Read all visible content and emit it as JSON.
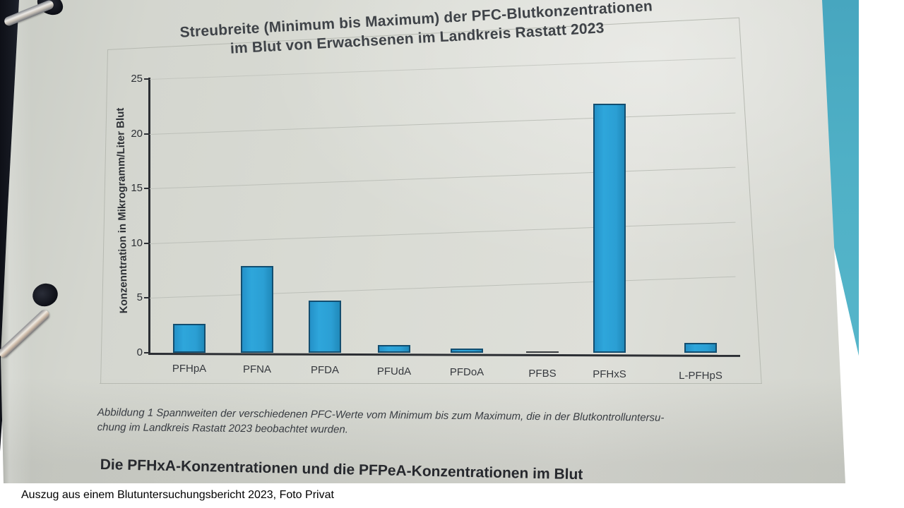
{
  "photo": {
    "title_line1": "Streubreite (Minimum bis Maximum) der PFC-Blutkonzentrationen",
    "title_line2": "im Blut von Erwachsenen im Landkreis Rastatt 2023",
    "caption_line1": "Abbildung 1 Spannweiten der verschiedenen PFC-Werte vom Minimum bis zum Maximum, die in der Blutkontrolluntersu-",
    "caption_line2": "chung im Landkreis Rastatt 2023 beobachtet wurden.",
    "heading_cutoff": "Die PFHxA-Konzentrationen und die PFPeA-Konzentrationen im Blut"
  },
  "footer": {
    "text": "Auszug aus einem Blutuntersuchungsbericht 2023, Foto Privat"
  },
  "chart_data": {
    "type": "bar",
    "title": "Streubreite (Minimum bis Maximum) der PFC-Blutkonzentrationen im Blut von Erwachsenen im Landkreis Rastatt 2023",
    "categories": [
      "PFHpA",
      "PFNA",
      "PFDA",
      "PFUdA",
      "PFDoA",
      "PFBS",
      "PFHxS",
      "L-PFHpS"
    ],
    "values": [
      2.6,
      7.7,
      4.6,
      0.7,
      0.35,
      0.1,
      20.5,
      0.8
    ],
    "xlabel": "",
    "ylabel": "Konzenntration in Mikrogramm/Liter Blut",
    "ylim": [
      0,
      25
    ],
    "yticks": [
      0,
      5,
      10,
      15,
      20,
      25
    ],
    "grid": true,
    "legend": "none",
    "annotation": "PFBS range collapses to a flat dash at ~0"
  },
  "colors": {
    "bar_fill": "#2b9fd4",
    "bar_border": "#134e70",
    "paper": "#d9dbd4",
    "teal_background": "#4fb0c6",
    "binder_edge": "#14161d",
    "axis": "#2b2e33",
    "gridline": "#bdc0b9"
  }
}
